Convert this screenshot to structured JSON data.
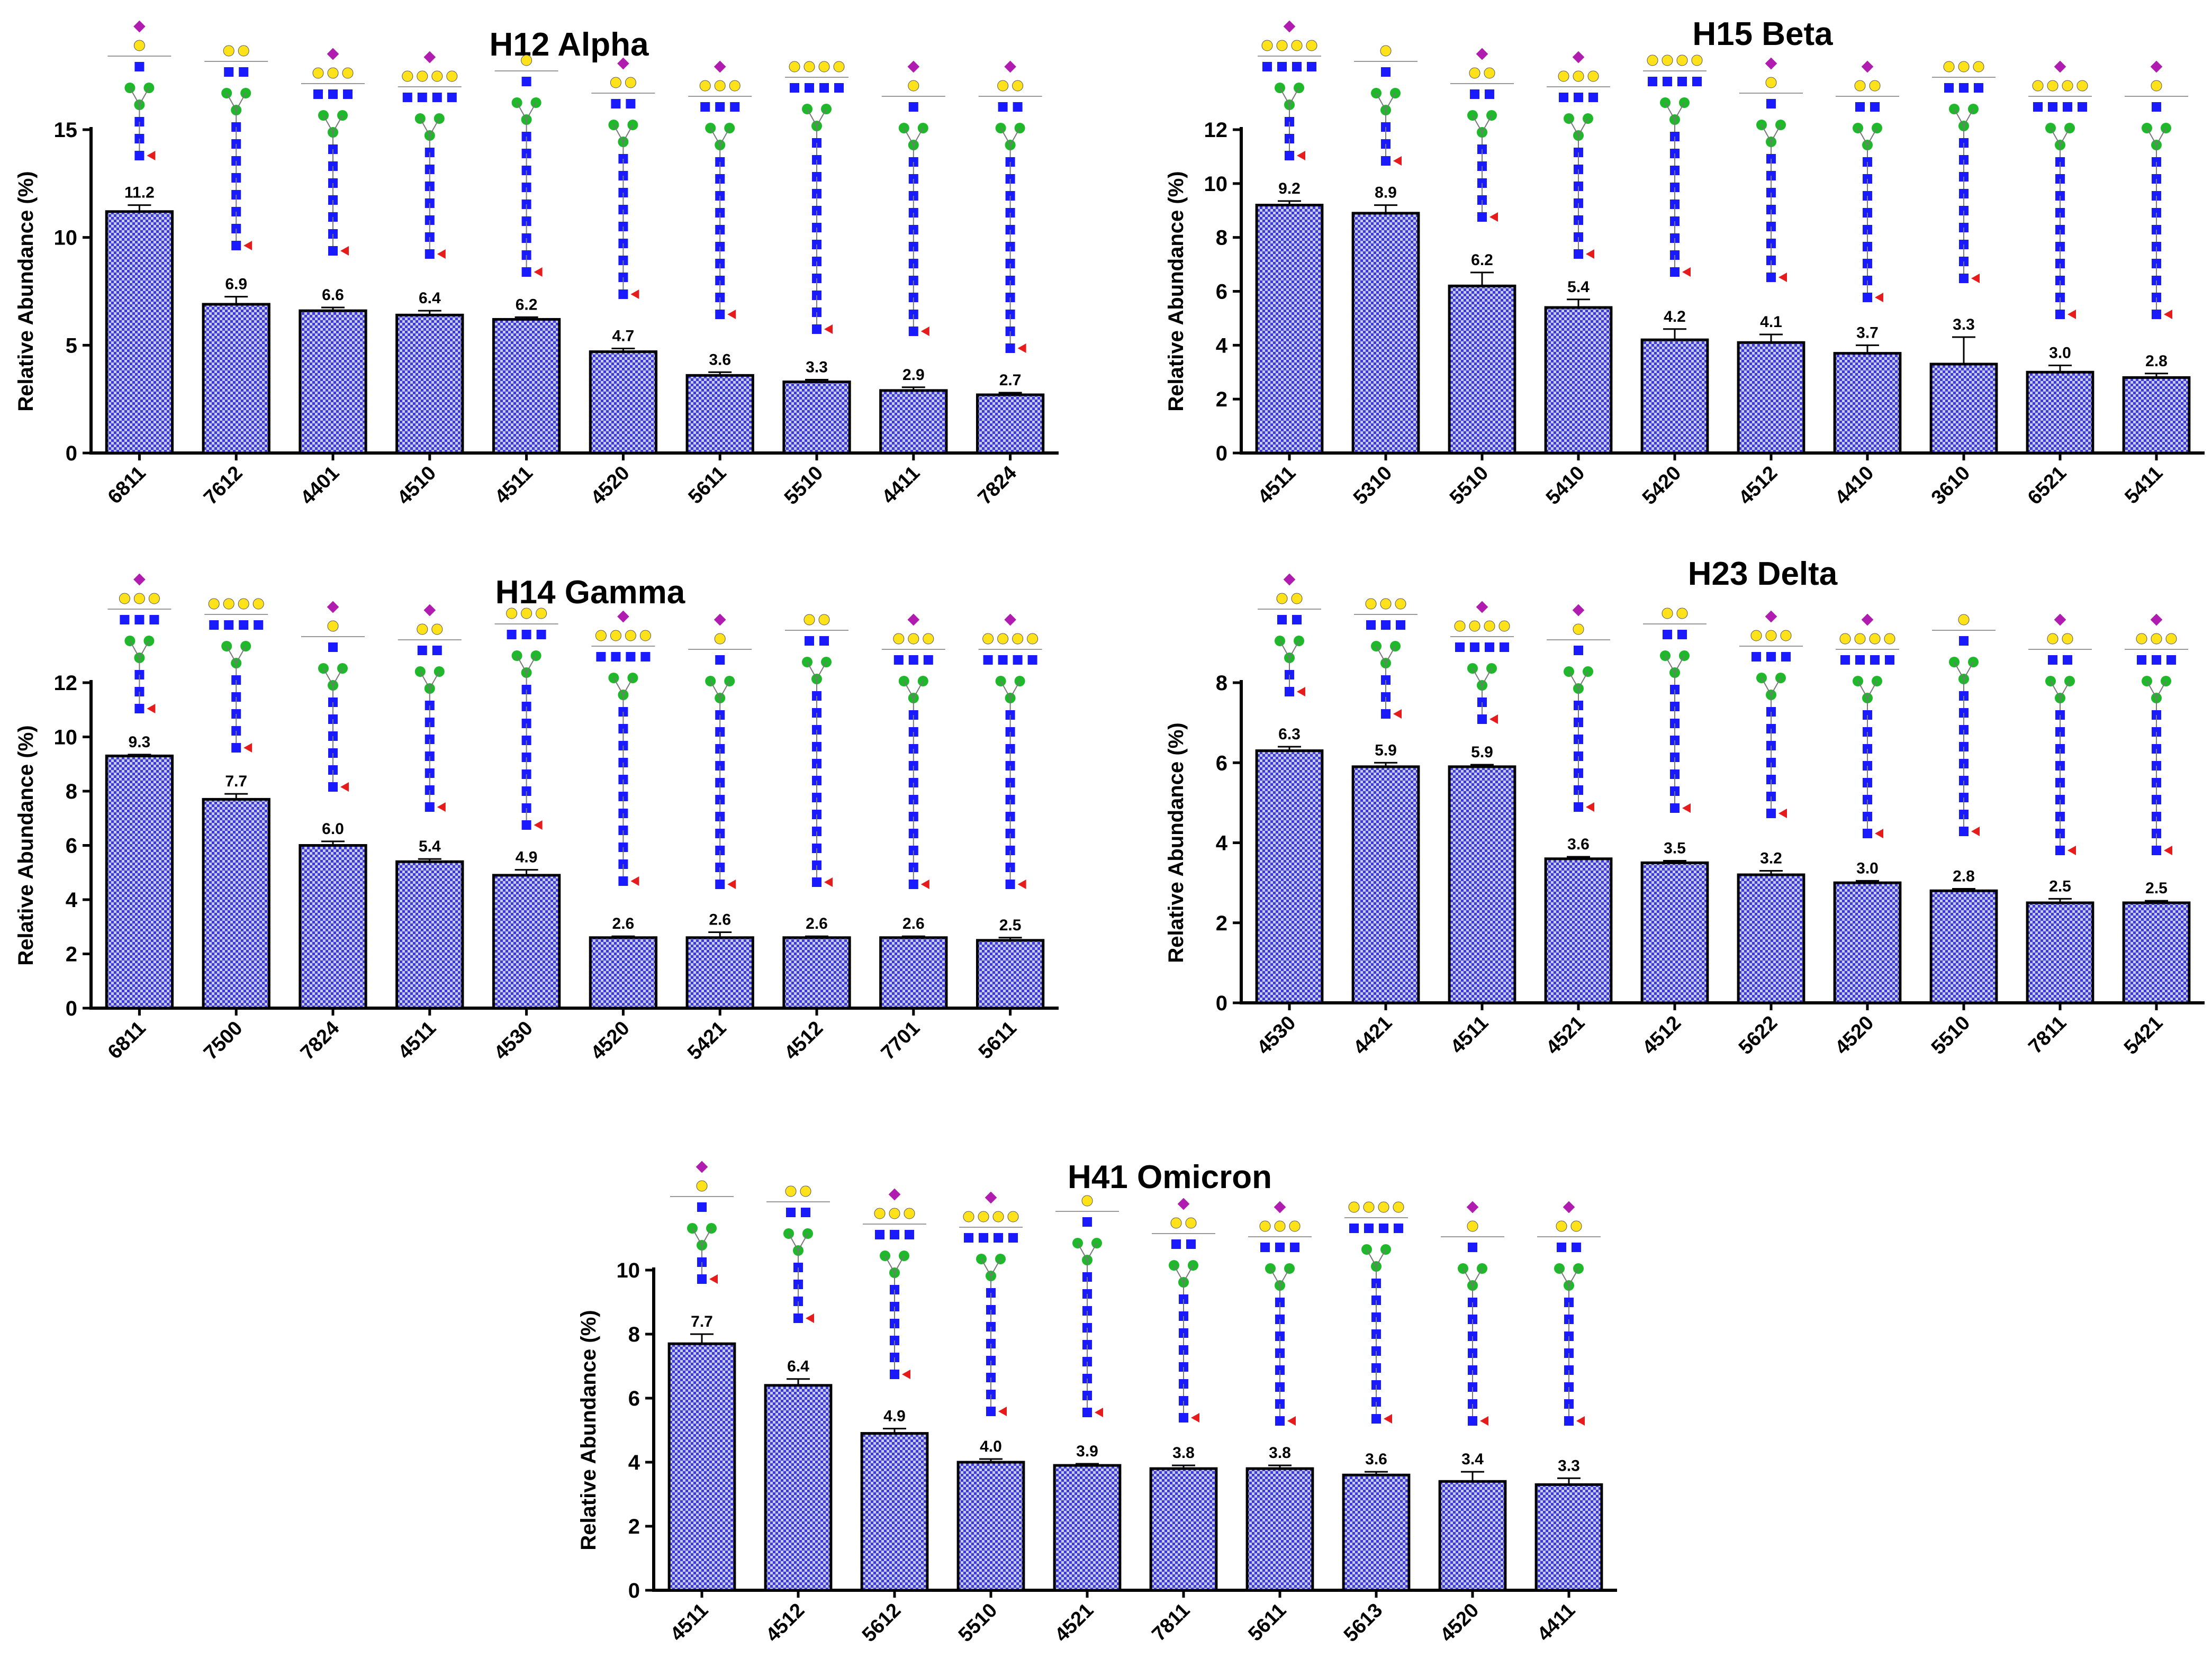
{
  "ylabel": "Relative Abundance (%)",
  "colors": {
    "bar_hatch": "#3b3bd9",
    "bar_fill_light": "#c8c8f5",
    "axis": "#000000",
    "glycan_gal": "#ffe21a",
    "glycan_glcnac": "#1a1aff",
    "glycan_man": "#1fb82a",
    "glycan_fuc": "#e61c1c",
    "glycan_sia": "#b01cb0"
  },
  "chart_data": [
    {
      "type": "bar",
      "title": "H12 Alpha",
      "ylabel": "Relative Abundance (%)",
      "ylim": [
        0,
        15
      ],
      "yticks": [
        0,
        5,
        10,
        15
      ],
      "categories": [
        "6811",
        "7612",
        "4401",
        "4510",
        "4511",
        "4520",
        "5611",
        "5510",
        "4411",
        "7824"
      ],
      "values": [
        11.2,
        6.9,
        6.6,
        6.4,
        6.2,
        4.7,
        3.6,
        3.3,
        2.9,
        2.7
      ],
      "value_labels": [
        "11.2",
        "6.9",
        "6.6",
        "6.4",
        "6.2",
        "4.7",
        "3.6",
        "3.3",
        "2.9",
        "2.7"
      ],
      "errors": [
        0.3,
        0.35,
        0.15,
        0.2,
        0.1,
        0.15,
        0.15,
        0.1,
        0.15,
        0.1
      ]
    },
    {
      "type": "bar",
      "title": "H15 Beta",
      "ylabel": "Relative Abundance (%)",
      "ylim": [
        0,
        12
      ],
      "yticks": [
        0,
        2,
        4,
        6,
        8,
        10,
        12
      ],
      "categories": [
        "4511",
        "5310",
        "5510",
        "5410",
        "5420",
        "4512",
        "4410",
        "3610",
        "6521",
        "5411"
      ],
      "values": [
        9.2,
        8.9,
        6.2,
        5.4,
        4.2,
        4.1,
        3.7,
        3.3,
        3.0,
        2.8
      ],
      "value_labels": [
        "9.2",
        "8.9",
        "6.2",
        "5.4",
        "4.2",
        "4.1",
        "3.7",
        "3.3",
        "3.0",
        "2.8"
      ],
      "errors": [
        0.15,
        0.3,
        0.5,
        0.3,
        0.4,
        0.3,
        0.3,
        1.0,
        0.25,
        0.15
      ]
    },
    {
      "type": "bar",
      "title": "H14 Gamma",
      "ylabel": "Relative Abundance (%)",
      "ylim": [
        0,
        12
      ],
      "yticks": [
        0,
        2,
        4,
        6,
        8,
        10,
        12
      ],
      "categories": [
        "6811",
        "7500",
        "7824",
        "4511",
        "4530",
        "4520",
        "5421",
        "4512",
        "7701",
        "5611"
      ],
      "values": [
        9.3,
        7.7,
        6.0,
        5.4,
        4.9,
        2.6,
        2.6,
        2.6,
        2.6,
        2.5
      ],
      "value_labels": [
        "9.3",
        "7.7",
        "6.0",
        "5.4",
        "4.9",
        "2.6",
        "2.6",
        "2.6",
        "2.6",
        "2.5"
      ],
      "errors": [
        0.05,
        0.2,
        0.15,
        0.1,
        0.2,
        0.05,
        0.2,
        0.05,
        0.05,
        0.1
      ]
    },
    {
      "type": "bar",
      "title": "H23 Delta",
      "ylabel": "Relative Abundance (%)",
      "ylim": [
        0,
        8
      ],
      "yticks": [
        0,
        2,
        4,
        6,
        8
      ],
      "categories": [
        "4530",
        "4421",
        "4511",
        "4521",
        "4512",
        "5622",
        "4520",
        "5510",
        "7811",
        "5421"
      ],
      "values": [
        6.3,
        5.9,
        5.9,
        3.6,
        3.5,
        3.2,
        3.0,
        2.8,
        2.5,
        2.5
      ],
      "value_labels": [
        "6.3",
        "5.9",
        "5.9",
        "3.6",
        "3.5",
        "3.2",
        "3.0",
        "2.8",
        "2.5",
        "2.5"
      ],
      "errors": [
        0.1,
        0.1,
        0.05,
        0.05,
        0.05,
        0.1,
        0.05,
        0.05,
        0.1,
        0.05
      ]
    },
    {
      "type": "bar",
      "title": "H41 Omicron",
      "ylabel": "Relative Abundance (%)",
      "ylim": [
        0,
        10
      ],
      "yticks": [
        0,
        2,
        4,
        6,
        8,
        10
      ],
      "categories": [
        "4511",
        "4512",
        "5612",
        "5510",
        "4521",
        "7811",
        "5611",
        "5613",
        "4520",
        "4411"
      ],
      "values": [
        7.7,
        6.4,
        4.9,
        4.0,
        3.9,
        3.8,
        3.8,
        3.6,
        3.4,
        3.3
      ],
      "value_labels": [
        "7.7",
        "6.4",
        "4.9",
        "4.0",
        "3.9",
        "3.8",
        "3.8",
        "3.6",
        "3.4",
        "3.3"
      ],
      "errors": [
        0.3,
        0.2,
        0.15,
        0.1,
        0.05,
        0.1,
        0.1,
        0.1,
        0.3,
        0.2
      ]
    }
  ]
}
